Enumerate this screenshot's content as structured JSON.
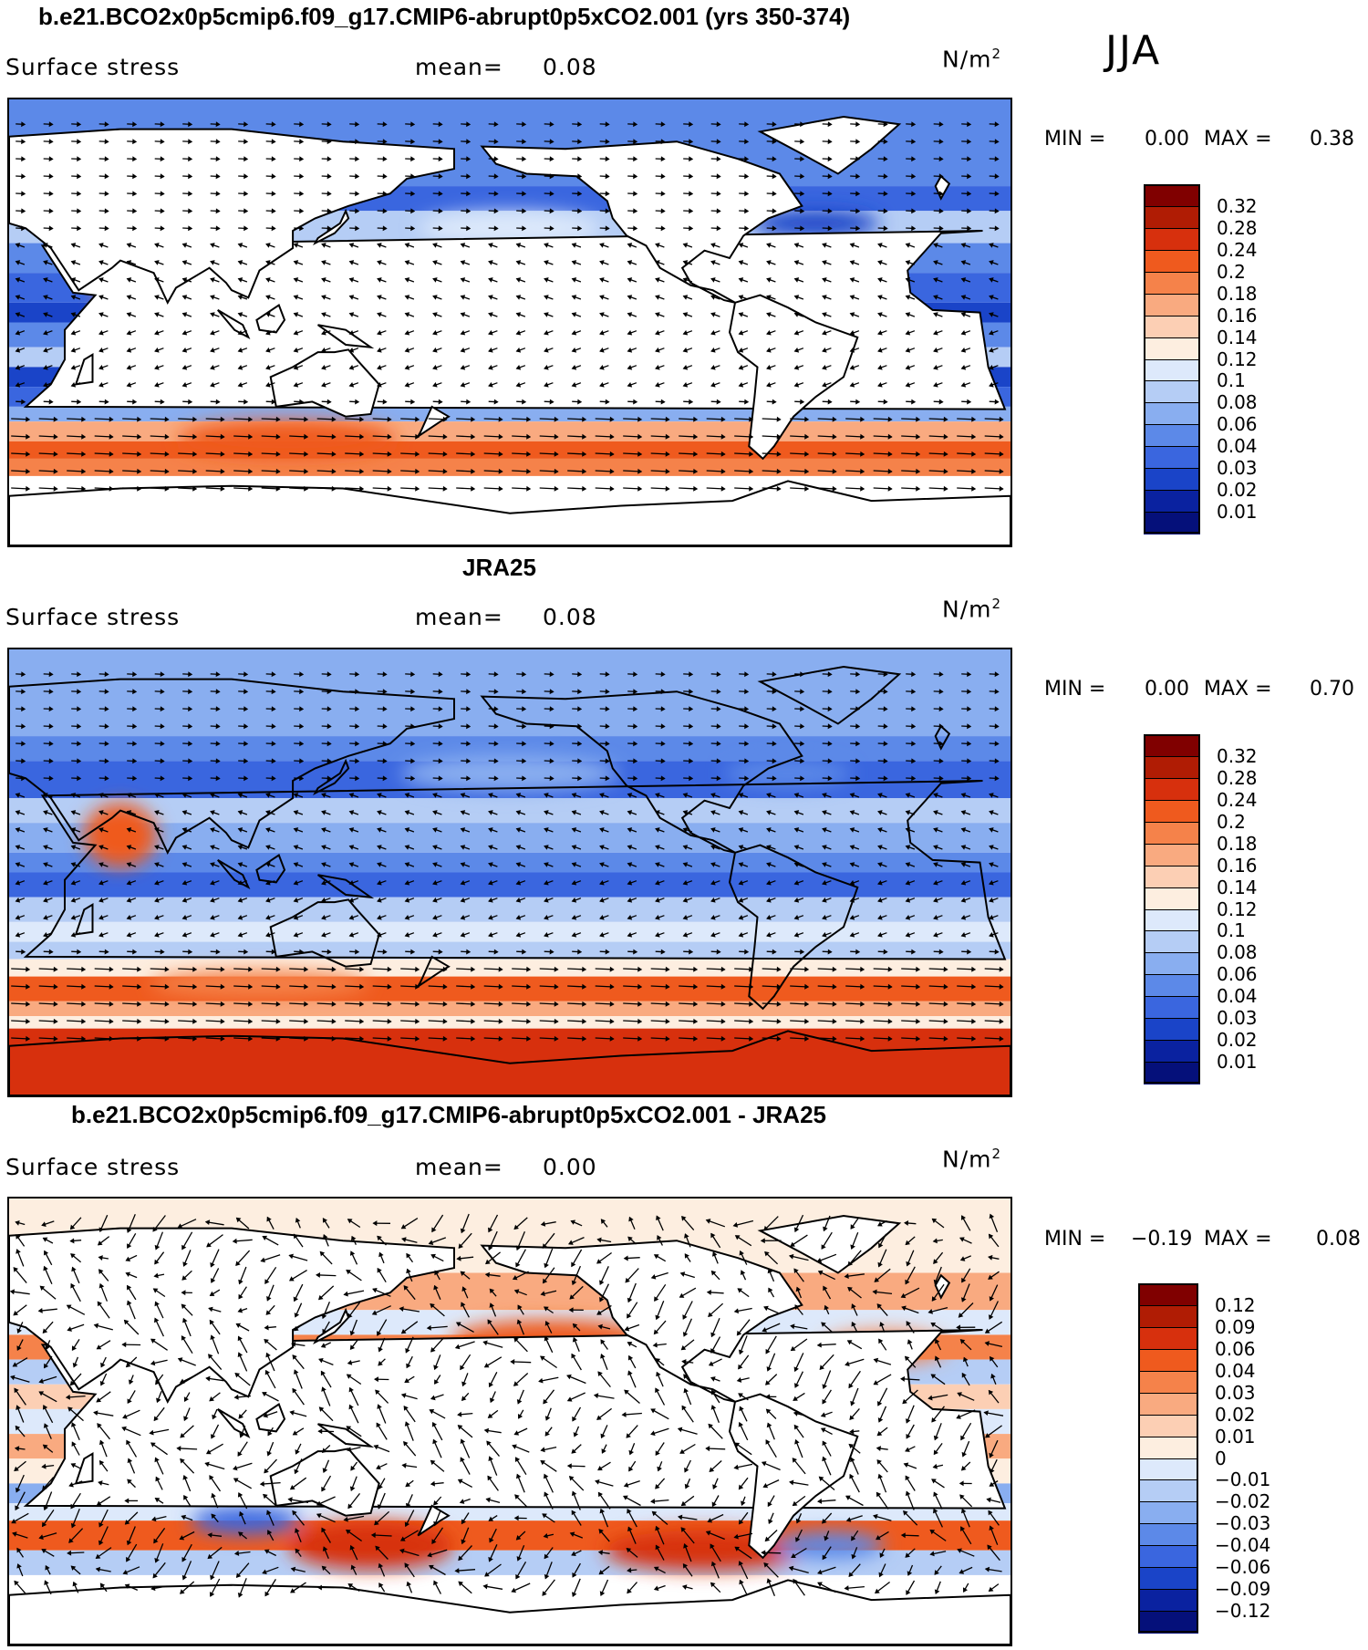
{
  "season": "JJA",
  "panels": [
    {
      "title": "b.e21.BCO2x0p5cmip6.f09_g17.CMIP6-abrupt0p5xCO2.001 (yrs 350-374)",
      "variable": "Surface stress",
      "mean_label": "mean=",
      "mean_value": "0.08",
      "units": "N/m",
      "units_exp": "2",
      "min_label": "MIN =",
      "min_value": "0.00",
      "max_label": "MAX =",
      "max_value": "0.38",
      "colorbar": {
        "labels": [
          "0.32",
          "0.28",
          "0.24",
          "0.2",
          "0.18",
          "0.16",
          "0.14",
          "0.12",
          "0.1",
          "0.08",
          "0.06",
          "0.04",
          "0.03",
          "0.02",
          "0.01"
        ],
        "colors": [
          "#800000",
          "#b01c04",
          "#d7300d",
          "#ef5a1e",
          "#f5824a",
          "#f9aa80",
          "#fccfb4",
          "#fdeee0",
          "#dde9fb",
          "#b5cdf5",
          "#89aef0",
          "#5c89e8",
          "#3a66df",
          "#1a44c8",
          "#0a22a0",
          "#05107a"
        ]
      }
    },
    {
      "title": "JRA25",
      "variable": "Surface stress",
      "mean_label": "mean=",
      "mean_value": "0.08",
      "units": "N/m",
      "units_exp": "2",
      "min_label": "MIN =",
      "min_value": "0.00",
      "max_label": "MAX =",
      "max_value": "0.70",
      "colorbar": {
        "labels": [
          "0.32",
          "0.28",
          "0.24",
          "0.2",
          "0.18",
          "0.16",
          "0.14",
          "0.12",
          "0.1",
          "0.08",
          "0.06",
          "0.04",
          "0.03",
          "0.02",
          "0.01"
        ],
        "colors": [
          "#800000",
          "#b01c04",
          "#d7300d",
          "#ef5a1e",
          "#f5824a",
          "#f9aa80",
          "#fccfb4",
          "#fdeee0",
          "#dde9fb",
          "#b5cdf5",
          "#89aef0",
          "#5c89e8",
          "#3a66df",
          "#1a44c8",
          "#0a22a0",
          "#05107a"
        ]
      }
    },
    {
      "title": "b.e21.BCO2x0p5cmip6.f09_g17.CMIP6-abrupt0p5xCO2.001 - JRA25",
      "variable": "Surface stress",
      "mean_label": "mean=",
      "mean_value": "0.00",
      "units": "N/m",
      "units_exp": "2",
      "min_label": "MIN =",
      "min_value": "−0.19",
      "max_label": "MAX =",
      "max_value": "0.08",
      "colorbar": {
        "labels": [
          "0.12",
          "0.09",
          "0.06",
          "0.04",
          "0.03",
          "0.02",
          "0.01",
          "0",
          "−0.01",
          "−0.02",
          "−0.03",
          "−0.04",
          "−0.06",
          "−0.09",
          "−0.12"
        ],
        "colors": [
          "#800000",
          "#b01c04",
          "#d7300d",
          "#ef5a1e",
          "#f5824a",
          "#f9aa80",
          "#fccfb4",
          "#fdeee0",
          "#dde9fb",
          "#b5cdf5",
          "#89aef0",
          "#5c89e8",
          "#3a66df",
          "#1a44c8",
          "#0a22a0",
          "#05107a"
        ]
      }
    }
  ]
}
